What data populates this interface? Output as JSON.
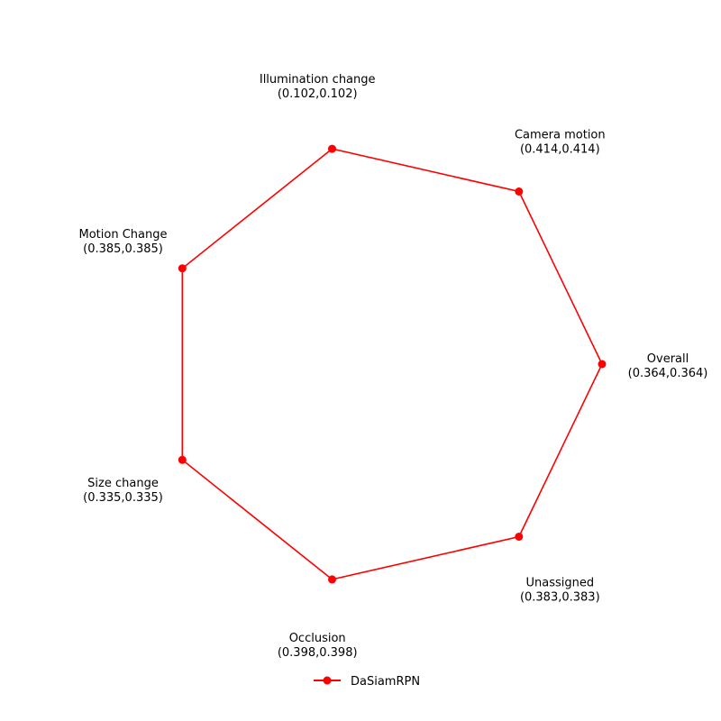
{
  "chart_data": {
    "type": "radar",
    "title": "",
    "axes": [
      {
        "label": "Overall",
        "value_label": "(0.364,0.364)"
      },
      {
        "label": "Camera motion",
        "value_label": "(0.414,0.414)"
      },
      {
        "label": "Illumination change",
        "value_label": "(0.102,0.102)"
      },
      {
        "label": "Motion Change",
        "value_label": "(0.385,0.385)"
      },
      {
        "label": "Size change",
        "value_label": "(0.335,0.335)"
      },
      {
        "label": "Occlusion",
        "value_label": "(0.398,0.398)"
      },
      {
        "label": "Unassigned",
        "value_label": "(0.383,0.383)"
      }
    ],
    "series": [
      {
        "name": "DaSiamRPN",
        "values": [
          1,
          1,
          1,
          1,
          1,
          1,
          1
        ],
        "color": "#ff0000",
        "marker": "circle"
      }
    ],
    "grid": false,
    "legend_position": "bottom-center"
  }
}
